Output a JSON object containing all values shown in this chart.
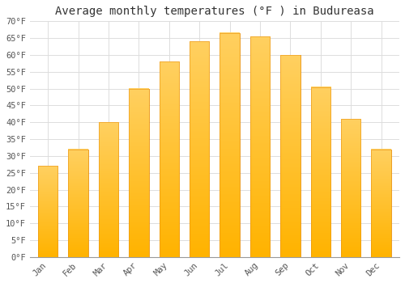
{
  "title": "Average monthly temperatures (°F ) in Budureasa",
  "months": [
    "Jan",
    "Feb",
    "Mar",
    "Apr",
    "May",
    "Jun",
    "Jul",
    "Aug",
    "Sep",
    "Oct",
    "Nov",
    "Dec"
  ],
  "values": [
    27,
    32,
    40,
    50,
    58,
    64,
    66.5,
    65.5,
    60,
    50.5,
    41,
    32
  ],
  "bar_color_top": "#FFC020",
  "bar_color_bottom": "#FFA020",
  "bar_edge_color": "#E89010",
  "ylim": [
    0,
    70
  ],
  "yticks": [
    0,
    5,
    10,
    15,
    20,
    25,
    30,
    35,
    40,
    45,
    50,
    55,
    60,
    65,
    70
  ],
  "ylabel_suffix": "°F",
  "background_color": "#ffffff",
  "grid_color": "#dddddd",
  "title_fontsize": 10,
  "tick_fontsize": 7.5,
  "bar_width": 0.65
}
